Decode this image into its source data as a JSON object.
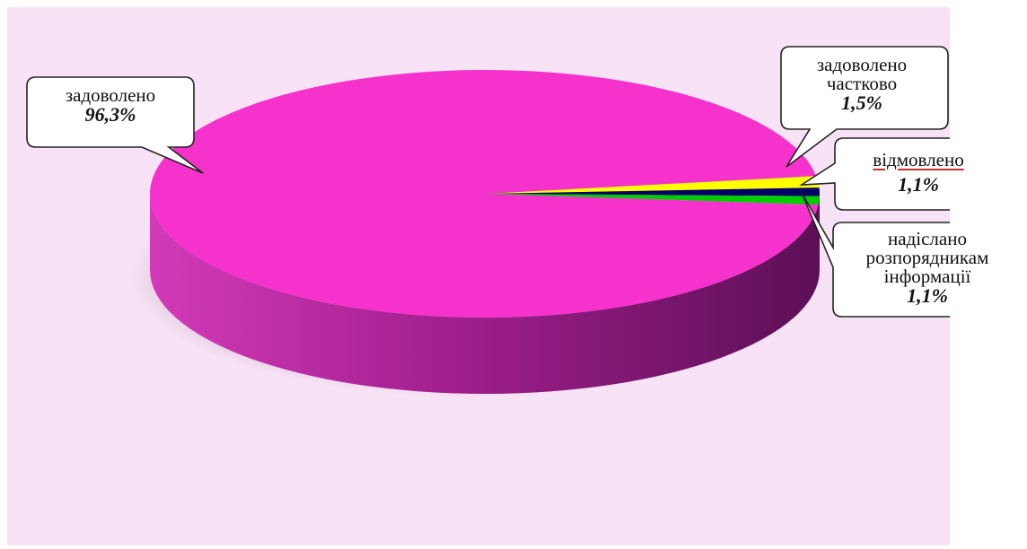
{
  "chart_data": {
    "type": "pie",
    "title": "",
    "slices": [
      {
        "label": "задоволено",
        "label_lines": [
          "задоволено"
        ],
        "value": 96.3,
        "value_label": "96,3%",
        "color": "#f533cc"
      },
      {
        "label": "задоволено частково",
        "label_lines": [
          "задоволено",
          "частково"
        ],
        "value": 1.5,
        "value_label": "1,5%",
        "color": "#ffff00"
      },
      {
        "label": "відмовлено",
        "label_lines": [
          "відмовлено"
        ],
        "value": 1.1,
        "value_label": "1,1%",
        "color": "#000066"
      },
      {
        "label": "надіслано розпорядникам інформації",
        "label_lines": [
          "надіслано",
          "розпорядникам",
          "інформації"
        ],
        "value": 1.1,
        "value_label": "1,1%",
        "color": "#00cc00"
      }
    ],
    "style": "3d",
    "background_color": "#f7e3f5"
  }
}
